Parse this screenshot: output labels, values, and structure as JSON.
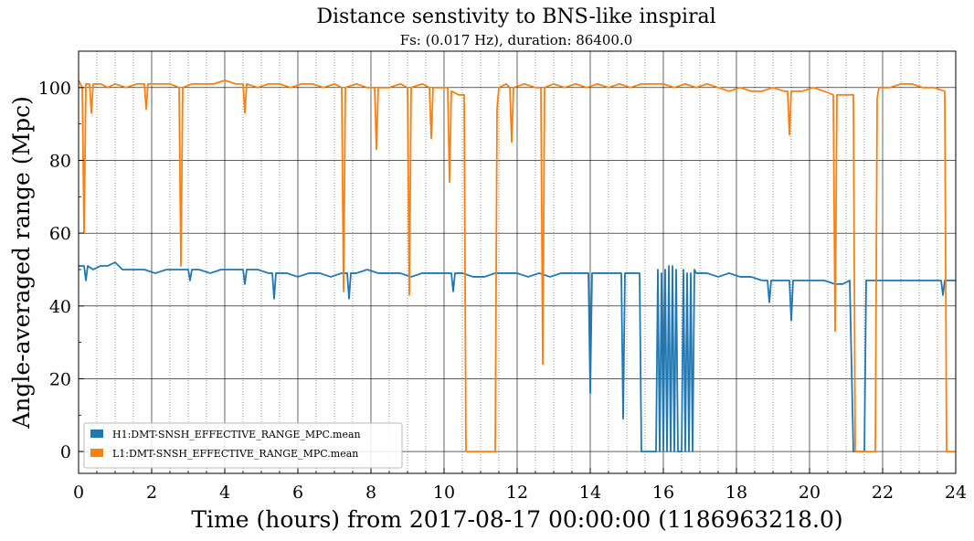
{
  "chart_data": {
    "type": "line",
    "title": "Distance senstivity to BNS-like inspiral",
    "subtitle": "Fs: (0.017 Hz), duration: 86400.0",
    "xlabel": "Time (hours) from 2017-08-17 00:00:00 (1186963218.0)",
    "ylabel": "Angle-averaged range (Mpc)",
    "xlim": [
      0,
      24
    ],
    "ylim": [
      -6,
      110
    ],
    "x_ticks": [
      0,
      2,
      4,
      6,
      8,
      10,
      12,
      14,
      16,
      18,
      20,
      22,
      24
    ],
    "x_tick_labels": [
      "0",
      "2",
      "4",
      "6",
      "8",
      "10",
      "12",
      "14",
      "16",
      "18",
      "20",
      "22",
      "24"
    ],
    "y_ticks": [
      0,
      20,
      40,
      60,
      80,
      100
    ],
    "y_tick_labels": [
      "0",
      "20",
      "40",
      "60",
      "80",
      "100"
    ],
    "grid": true,
    "legend_position": "lower-left",
    "series": [
      {
        "name": "H1:DMT-SNSH_EFFECTIVE_RANGE_MPC.mean",
        "color": "#1f77b4",
        "x": [
          0.0,
          0.15,
          0.2,
          0.25,
          0.4,
          0.6,
          0.8,
          1.0,
          1.2,
          1.5,
          1.8,
          2.1,
          2.4,
          2.7,
          3.0,
          3.05,
          3.1,
          3.3,
          3.6,
          3.9,
          4.2,
          4.5,
          4.55,
          4.6,
          4.9,
          5.2,
          5.3,
          5.35,
          5.4,
          5.7,
          6.0,
          6.3,
          6.6,
          6.9,
          7.2,
          7.35,
          7.4,
          7.45,
          7.6,
          7.9,
          8.2,
          8.5,
          8.8,
          9.1,
          9.4,
          9.7,
          10.0,
          10.2,
          10.25,
          10.3,
          10.5,
          10.8,
          11.1,
          11.4,
          11.7,
          12.0,
          12.3,
          12.6,
          12.9,
          13.2,
          13.5,
          13.8,
          13.95,
          14.0,
          14.05,
          14.3,
          14.6,
          14.85,
          14.9,
          14.95,
          15.2,
          15.35,
          15.4,
          15.8,
          15.85,
          15.9,
          15.95,
          16.0,
          16.05,
          16.1,
          16.15,
          16.2,
          16.25,
          16.3,
          16.35,
          16.4,
          16.5,
          16.55,
          16.6,
          16.65,
          16.7,
          16.75,
          16.8,
          16.85,
          16.9,
          17.2,
          17.5,
          17.8,
          18.1,
          18.4,
          18.7,
          18.85,
          18.9,
          18.95,
          19.2,
          19.45,
          19.5,
          19.55,
          19.8,
          20.1,
          20.4,
          20.7,
          20.9,
          21.1,
          21.2,
          21.25,
          21.5,
          21.55,
          21.6,
          21.9,
          22.2,
          22.5,
          22.8,
          23.1,
          23.4,
          23.6,
          23.65,
          23.7,
          24.0
        ],
        "y": [
          51,
          51,
          47,
          51,
          50,
          51,
          51,
          52,
          50,
          50,
          50,
          49,
          50,
          50,
          50,
          47,
          50,
          50,
          49,
          50,
          50,
          50,
          46,
          50,
          50,
          49,
          49,
          42,
          49,
          49,
          48,
          49,
          49,
          48,
          49,
          49,
          42,
          49,
          49,
          50,
          49,
          49,
          49,
          48,
          49,
          49,
          49,
          49,
          44,
          49,
          49,
          48,
          48,
          49,
          49,
          49,
          48,
          49,
          48,
          49,
          49,
          49,
          49,
          16,
          49,
          49,
          49,
          49,
          9,
          49,
          49,
          49,
          0,
          0,
          50,
          0,
          49,
          0,
          50,
          0,
          51,
          0,
          51,
          0,
          50,
          0,
          0,
          50,
          0,
          49,
          0,
          49,
          0,
          50,
          49,
          49,
          48,
          49,
          48,
          48,
          47,
          47,
          41,
          47,
          47,
          47,
          36,
          47,
          47,
          47,
          47,
          46,
          46,
          47,
          0,
          0,
          0,
          47,
          47,
          47,
          47,
          47,
          47,
          47,
          47,
          47,
          43,
          47,
          47
        ]
      },
      {
        "name": "L1:DMT-SNSH_EFFECTIVE_RANGE_MPC.mean",
        "color": "#ff7f0e",
        "x": [
          0.0,
          0.1,
          0.15,
          0.2,
          0.3,
          0.35,
          0.4,
          0.6,
          0.8,
          1.0,
          1.3,
          1.6,
          1.8,
          1.85,
          1.9,
          2.2,
          2.5,
          2.75,
          2.8,
          2.85,
          3.1,
          3.4,
          3.7,
          4.0,
          4.3,
          4.5,
          4.55,
          4.6,
          4.9,
          5.2,
          5.5,
          5.8,
          6.1,
          6.4,
          6.7,
          7.0,
          7.2,
          7.25,
          7.3,
          7.6,
          7.9,
          8.1,
          8.15,
          8.2,
          8.5,
          8.8,
          9.0,
          9.05,
          9.1,
          9.4,
          9.6,
          9.65,
          9.7,
          9.9,
          10.1,
          10.15,
          10.2,
          10.4,
          10.55,
          10.6,
          11.4,
          11.45,
          11.5,
          11.7,
          11.8,
          11.85,
          11.9,
          12.2,
          12.5,
          12.65,
          12.7,
          12.75,
          13.0,
          13.3,
          13.6,
          13.9,
          14.2,
          14.5,
          14.8,
          15.1,
          15.4,
          15.7,
          16.0,
          16.3,
          16.6,
          16.9,
          17.2,
          17.5,
          17.8,
          18.1,
          18.4,
          18.7,
          19.0,
          19.3,
          19.4,
          19.45,
          19.5,
          19.8,
          20.1,
          20.4,
          20.65,
          20.7,
          20.75,
          21.0,
          21.2,
          21.25,
          21.8,
          21.85,
          21.9,
          22.2,
          22.5,
          22.8,
          23.1,
          23.4,
          23.7,
          23.75,
          24.0
        ],
        "y": [
          102,
          100,
          60,
          101,
          101,
          93,
          101,
          101,
          100,
          101,
          100,
          101,
          101,
          94,
          101,
          101,
          101,
          100,
          51,
          100,
          101,
          101,
          101,
          102,
          101,
          101,
          93,
          101,
          100,
          101,
          101,
          100,
          101,
          101,
          100,
          101,
          100,
          44,
          100,
          101,
          100,
          100,
          83,
          100,
          100,
          101,
          100,
          43,
          100,
          101,
          100,
          86,
          100,
          100,
          100,
          74,
          99,
          98,
          98,
          0,
          0,
          94,
          100,
          101,
          100,
          85,
          100,
          101,
          100,
          100,
          24,
          100,
          101,
          100,
          101,
          100,
          101,
          100,
          101,
          100,
          101,
          101,
          101,
          100,
          101,
          100,
          101,
          100,
          99,
          100,
          99,
          99,
          100,
          99,
          99,
          87,
          99,
          99,
          100,
          99,
          98,
          33,
          98,
          98,
          98,
          0,
          0,
          97,
          100,
          100,
          101,
          101,
          100,
          100,
          99,
          0,
          0
        ]
      }
    ]
  }
}
